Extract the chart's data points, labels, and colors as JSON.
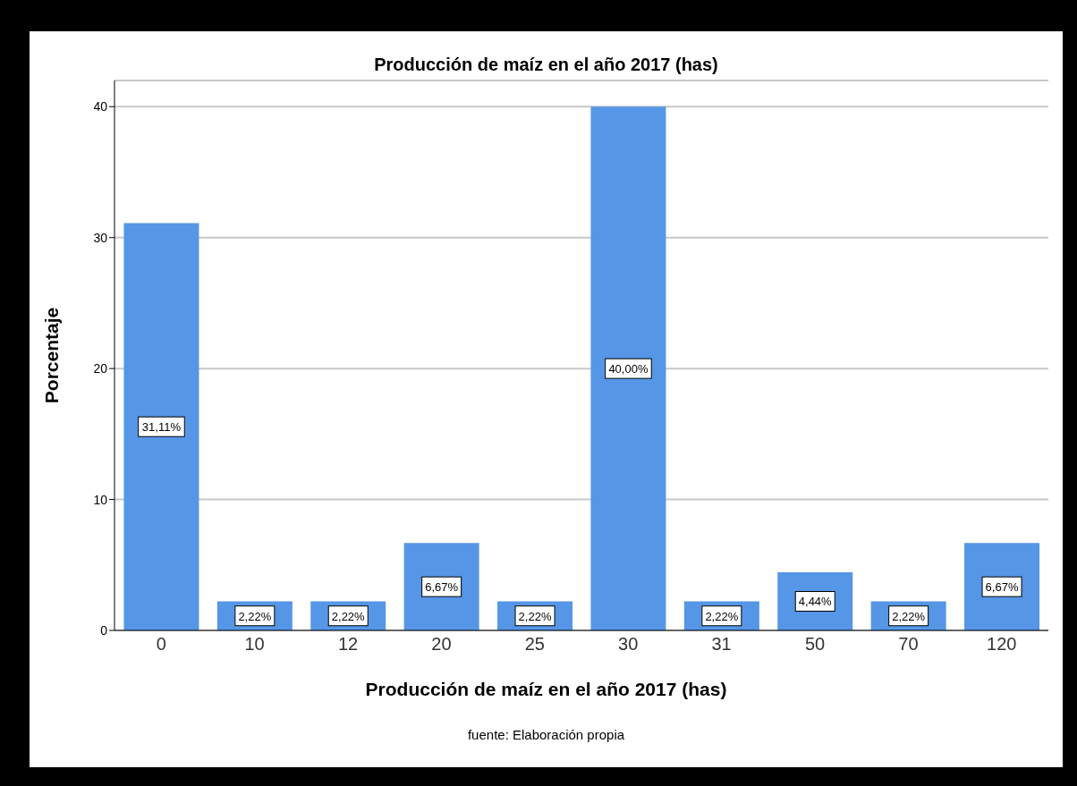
{
  "chart_data": {
    "type": "bar",
    "title": "Producción de maíz en el año 2017 (has)",
    "xlabel": "Producción de maíz en el año 2017 (has)",
    "ylabel": "Porcentaje",
    "categories": [
      "0",
      "10",
      "12",
      "20",
      "25",
      "30",
      "31",
      "50",
      "70",
      "120"
    ],
    "values": [
      31.11,
      2.22,
      2.22,
      6.67,
      2.22,
      40.0,
      2.22,
      4.44,
      2.22,
      6.67
    ],
    "value_labels": [
      "31,11%",
      "2,22%",
      "2,22%",
      "6,67%",
      "2,22%",
      "40,00%",
      "2,22%",
      "4,44%",
      "2,22%",
      "6,67%"
    ],
    "color": "#5596e6",
    "ylim": [
      0,
      42
    ],
    "yticks": [
      0,
      10,
      20,
      30,
      40
    ],
    "grid": "y",
    "legend": false,
    "annotations": [
      "fuente: Elaboración propia"
    ]
  }
}
